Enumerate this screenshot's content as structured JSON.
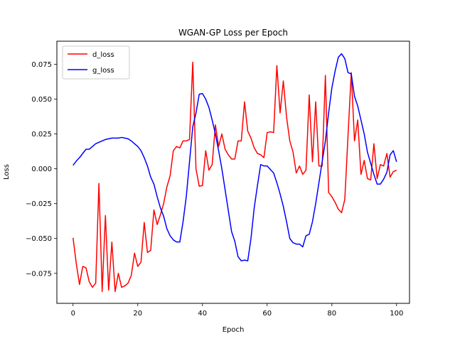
{
  "chart_data": {
    "type": "line",
    "title": "WGAN-GP Loss per Epoch",
    "xlabel": "Epoch",
    "ylabel": "Loss",
    "xlim": [
      -5,
      104
    ],
    "ylim": [
      -0.0965,
      0.0915
    ],
    "xticks": [
      0,
      20,
      40,
      60,
      80,
      100
    ],
    "yticks": [
      -0.075,
      -0.05,
      -0.025,
      0.0,
      0.025,
      0.05,
      0.075
    ],
    "ytick_labels": [
      "−0.075",
      "−0.050",
      "−0.025",
      "0.000",
      "0.025",
      "0.050",
      "0.075"
    ],
    "xtick_labels": [
      "0",
      "20",
      "40",
      "60",
      "80",
      "100"
    ],
    "grid": false,
    "legend_position": "top-left",
    "series": [
      {
        "name": "d_loss",
        "color": "#ff0000",
        "values": [
          -0.0495,
          -0.068,
          -0.083,
          -0.07,
          -0.071,
          -0.081,
          -0.085,
          -0.082,
          -0.0105,
          -0.088,
          -0.0335,
          -0.087,
          -0.0525,
          -0.088,
          -0.075,
          -0.085,
          -0.084,
          -0.082,
          -0.0765,
          -0.0605,
          -0.07,
          -0.067,
          -0.0385,
          -0.06,
          -0.0585,
          -0.0295,
          -0.04,
          -0.033,
          -0.025,
          -0.013,
          -0.005,
          0.013,
          0.016,
          0.015,
          0.02,
          0.02,
          0.021,
          0.0765,
          0.0,
          -0.0125,
          -0.012,
          0.013,
          -0.001,
          0.003,
          0.0315,
          0.016,
          0.025,
          0.014,
          0.01,
          0.007,
          0.007,
          0.02,
          0.02,
          0.048,
          0.027,
          0.022,
          0.015,
          0.011,
          0.01,
          0.008,
          0.026,
          0.0265,
          0.026,
          0.074,
          0.04,
          0.063,
          0.037,
          0.02,
          0.012,
          -0.003,
          0.002,
          -0.004,
          -0.001,
          0.053,
          0.005,
          0.048,
          0.002,
          0.002,
          0.067,
          -0.017,
          -0.02,
          -0.024,
          -0.029,
          -0.0315,
          -0.022,
          0.024,
          0.069,
          0.02,
          0.035,
          -0.004,
          0.006,
          -0.007,
          -0.008,
          0.018,
          -0.007,
          0.003,
          0.002,
          0.011,
          -0.006,
          -0.002,
          -0.001
        ]
      },
      {
        "name": "g_loss",
        "color": "#0000ff",
        "values": [
          0.0025,
          0.0055,
          0.008,
          0.011,
          0.014,
          0.014,
          0.016,
          0.018,
          0.019,
          0.02,
          0.021,
          0.0215,
          0.022,
          0.022,
          0.022,
          0.0225,
          0.022,
          0.0215,
          0.02,
          0.018,
          0.016,
          0.013,
          0.008,
          0.002,
          -0.006,
          -0.011,
          -0.02,
          -0.028,
          -0.034,
          -0.043,
          -0.048,
          -0.051,
          -0.0525,
          -0.0525,
          -0.038,
          -0.02,
          0.005,
          0.03,
          0.04,
          0.0535,
          0.054,
          0.05,
          0.044,
          0.035,
          0.025,
          0.013,
          0.0,
          -0.015,
          -0.03,
          -0.045,
          -0.052,
          -0.063,
          -0.066,
          -0.0655,
          -0.066,
          -0.05,
          -0.028,
          -0.012,
          0.003,
          0.002,
          0.002,
          -0.0005,
          -0.003,
          -0.01,
          -0.018,
          -0.027,
          -0.038,
          -0.05,
          -0.053,
          -0.054,
          -0.054,
          -0.056,
          -0.048,
          -0.047,
          -0.038,
          -0.025,
          -0.01,
          0.005,
          0.02,
          0.04,
          0.058,
          0.07,
          0.08,
          0.0825,
          0.079,
          0.069,
          0.068,
          0.052,
          0.045,
          0.035,
          0.025,
          0.012,
          0.004,
          -0.004,
          -0.011,
          -0.011,
          -0.0075,
          -0.0025,
          0.01,
          0.013,
          0.005
        ]
      }
    ]
  }
}
